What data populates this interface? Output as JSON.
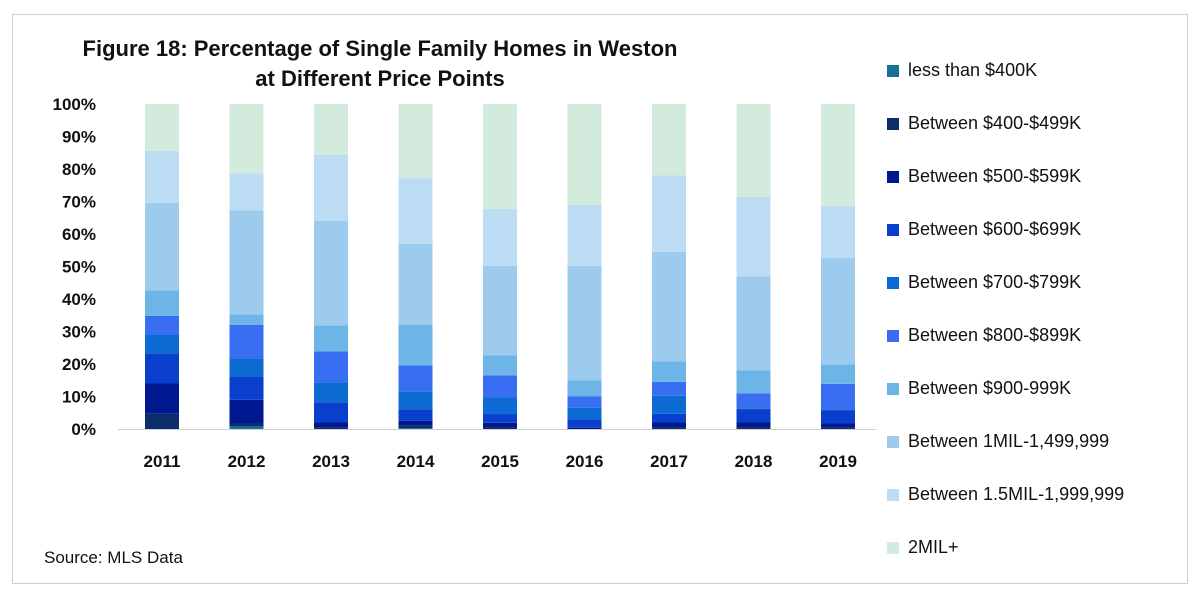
{
  "chart_data": {
    "type": "bar",
    "stacked": true,
    "title": "Figure 18: Percentage of Single Family Homes in Weston",
    "subtitle": "at Different Price Points",
    "xlabel": "",
    "ylabel": "",
    "ylim": [
      0,
      100
    ],
    "y_ticks": [
      "0%",
      "10%",
      "20%",
      "30%",
      "40%",
      "50%",
      "60%",
      "70%",
      "80%",
      "90%",
      "100%"
    ],
    "categories": [
      "2011",
      "2012",
      "2013",
      "2014",
      "2015",
      "2016",
      "2017",
      "2018",
      "2019"
    ],
    "legend_position": "right",
    "grid": false,
    "series": [
      {
        "name": "less than $400K",
        "color": "#1a6f96",
        "values": [
          0,
          0.8,
          0,
          0.3,
          0,
          0,
          0,
          0,
          0
        ]
      },
      {
        "name": "Between $400-$499K",
        "color": "#0a2d6b",
        "values": [
          4.7,
          0.9,
          0.5,
          0.9,
          0.6,
          0,
          0.6,
          0.6,
          0.4
        ]
      },
      {
        "name": "Between $500-$599K",
        "color": "#00188f",
        "values": [
          9.3,
          7.3,
          1.5,
          1.3,
          1.3,
          0.4,
          1.4,
          1.4,
          1.3
        ]
      },
      {
        "name": "Between $600-$699K",
        "color": "#0a3fce",
        "values": [
          9.3,
          7.0,
          6.2,
          3.6,
          2.7,
          2.5,
          2.7,
          4.0,
          4.0
        ]
      },
      {
        "name": "Between $700-$799K",
        "color": "#0b6bd3",
        "values": [
          5.8,
          5.8,
          6.2,
          5.5,
          5.1,
          3.6,
          5.5,
          0.4,
          0.4
        ]
      },
      {
        "name": "Between $800-$899K",
        "color": "#3a6ef2",
        "values": [
          5.7,
          10.2,
          9.5,
          8.0,
          6.8,
          3.5,
          4.3,
          4.6,
          7.8
        ]
      },
      {
        "name": "Between $900-999K",
        "color": "#6db5e6",
        "values": [
          7.8,
          3.3,
          8.0,
          12.4,
          6.2,
          5.0,
          6.3,
          7.0,
          6.0
        ]
      },
      {
        "name": "Between 1MIL-1,499,999",
        "color": "#9dcbee",
        "values": [
          27.0,
          32.0,
          32.2,
          25.0,
          27.5,
          35.2,
          33.7,
          28.9,
          32.7
        ]
      },
      {
        "name": "Between 1.5MIL-1,999,999",
        "color": "#bcdcf4",
        "values": [
          16.0,
          11.3,
          20.3,
          20.2,
          17.5,
          18.8,
          23.5,
          24.5,
          16.0
        ]
      },
      {
        "name": "2MIL+",
        "color": "#d3ebdc",
        "values": [
          14.4,
          21.4,
          15.6,
          22.8,
          32.3,
          31.0,
          22.0,
          28.6,
          31.4
        ]
      }
    ]
  },
  "source": "Source: MLS Data"
}
